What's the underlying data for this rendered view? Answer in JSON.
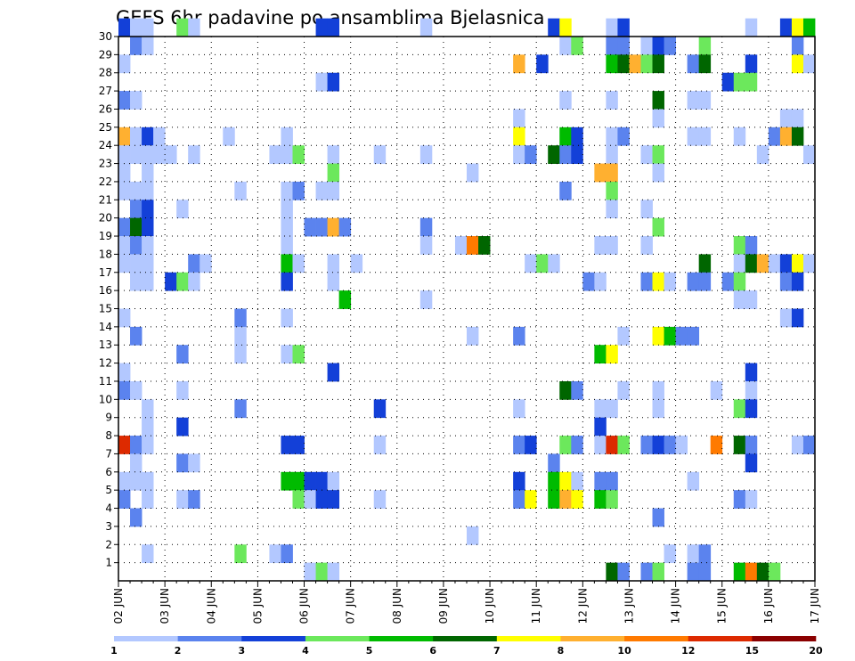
{
  "chart_data": {
    "type": "heatmap",
    "title": "GEFS 6hr padavine po ansamblima Bjelasnica",
    "x_tick_labels": [
      "02 JUN",
      "03 JUN",
      "04 JUN",
      "05 JUN",
      "06 JUN",
      "07 JUN",
      "08 JUN",
      "09 JUN",
      "10 JUN",
      "11 JUN",
      "12 JUN",
      "13 JUN",
      "14 JUN",
      "15 JUN",
      "16 JUN",
      "17 JUN"
    ],
    "y_tick_labels": [
      "1",
      "2",
      "3",
      "4",
      "5",
      "6",
      "7",
      "8",
      "9",
      "10",
      "11",
      "12",
      "13",
      "14",
      "15",
      "16",
      "17",
      "18",
      "19",
      "20",
      "21",
      "22",
      "23",
      "24",
      "25",
      "26",
      "27",
      "28",
      "29",
      "30"
    ],
    "x_range_steps": [
      0,
      60
    ],
    "steps_per_day": 4,
    "members_range": [
      0,
      30
    ],
    "grid": true,
    "colorbar": {
      "position": "bottom",
      "labels": [
        "1",
        "2",
        "3",
        "4",
        "5",
        "6",
        "7",
        "8",
        "10",
        "12",
        "15",
        "20"
      ],
      "colors": [
        "#b3c8ff",
        "#5b83ee",
        "#1340d8",
        "#6ce85c",
        "#00bb00",
        "#006600",
        "#ffff00",
        "#ffb030",
        "#ff7a00",
        "#dd2a00",
        "#8b0000"
      ]
    },
    "cells_legend": "[member, step, color_class]; color_class 1..11 indexes colorbar.colors",
    "cells": [
      [
        30,
        0,
        3
      ],
      [
        30,
        1,
        1
      ],
      [
        30,
        2,
        1
      ],
      [
        30,
        5,
        4
      ],
      [
        30,
        6,
        1
      ],
      [
        30,
        17,
        3
      ],
      [
        30,
        18,
        3
      ],
      [
        30,
        26,
        1
      ],
      [
        30,
        37,
        3
      ],
      [
        30,
        38,
        7
      ],
      [
        30,
        42,
        1
      ],
      [
        30,
        43,
        3
      ],
      [
        30,
        54,
        1
      ],
      [
        30,
        57,
        3
      ],
      [
        30,
        58,
        7
      ],
      [
        30,
        59,
        5
      ],
      [
        29,
        1,
        2
      ],
      [
        29,
        2,
        1
      ],
      [
        29,
        38,
        1
      ],
      [
        29,
        39,
        4
      ],
      [
        29,
        42,
        2
      ],
      [
        29,
        43,
        2
      ],
      [
        29,
        45,
        1
      ],
      [
        29,
        46,
        3
      ],
      [
        29,
        47,
        2
      ],
      [
        29,
        50,
        4
      ],
      [
        29,
        58,
        2
      ],
      [
        28,
        0,
        1
      ],
      [
        28,
        34,
        8
      ],
      [
        28,
        36,
        3
      ],
      [
        28,
        42,
        5
      ],
      [
        28,
        43,
        6
      ],
      [
        28,
        44,
        8
      ],
      [
        28,
        45,
        4
      ],
      [
        28,
        46,
        6
      ],
      [
        28,
        49,
        2
      ],
      [
        28,
        50,
        6
      ],
      [
        28,
        54,
        3
      ],
      [
        28,
        58,
        7
      ],
      [
        28,
        59,
        1
      ],
      [
        27,
        17,
        1
      ],
      [
        27,
        18,
        3
      ],
      [
        27,
        52,
        3
      ],
      [
        27,
        53,
        4
      ],
      [
        27,
        54,
        4
      ],
      [
        26,
        0,
        2
      ],
      [
        26,
        1,
        1
      ],
      [
        26,
        38,
        1
      ],
      [
        26,
        42,
        1
      ],
      [
        26,
        46,
        6
      ],
      [
        26,
        49,
        1
      ],
      [
        26,
        50,
        1
      ],
      [
        25,
        34,
        1
      ],
      [
        25,
        46,
        1
      ],
      [
        25,
        57,
        1
      ],
      [
        25,
        58,
        1
      ],
      [
        24,
        0,
        8
      ],
      [
        24,
        1,
        1
      ],
      [
        24,
        2,
        3
      ],
      [
        24,
        3,
        1
      ],
      [
        24,
        9,
        1
      ],
      [
        24,
        14,
        1
      ],
      [
        24,
        34,
        7
      ],
      [
        24,
        38,
        5
      ],
      [
        24,
        39,
        3
      ],
      [
        24,
        42,
        1
      ],
      [
        24,
        43,
        2
      ],
      [
        24,
        49,
        1
      ],
      [
        24,
        50,
        1
      ],
      [
        24,
        53,
        1
      ],
      [
        24,
        56,
        2
      ],
      [
        24,
        57,
        8
      ],
      [
        24,
        58,
        6
      ],
      [
        23,
        0,
        1
      ],
      [
        23,
        1,
        1
      ],
      [
        23,
        2,
        1
      ],
      [
        23,
        3,
        1
      ],
      [
        23,
        4,
        1
      ],
      [
        23,
        6,
        1
      ],
      [
        23,
        13,
        1
      ],
      [
        23,
        14,
        1
      ],
      [
        23,
        15,
        4
      ],
      [
        23,
        18,
        1
      ],
      [
        23,
        22,
        1
      ],
      [
        23,
        26,
        1
      ],
      [
        23,
        34,
        1
      ],
      [
        23,
        35,
        2
      ],
      [
        23,
        37,
        6
      ],
      [
        23,
        38,
        2
      ],
      [
        23,
        39,
        3
      ],
      [
        23,
        42,
        1
      ],
      [
        23,
        45,
        1
      ],
      [
        23,
        46,
        4
      ],
      [
        23,
        55,
        1
      ],
      [
        23,
        59,
        1
      ],
      [
        22,
        0,
        1
      ],
      [
        22,
        2,
        1
      ],
      [
        22,
        18,
        4
      ],
      [
        22,
        30,
        1
      ],
      [
        22,
        41,
        8
      ],
      [
        22,
        42,
        8
      ],
      [
        22,
        46,
        1
      ],
      [
        21,
        0,
        1
      ],
      [
        21,
        1,
        1
      ],
      [
        21,
        2,
        1
      ],
      [
        21,
        10,
        1
      ],
      [
        21,
        14,
        1
      ],
      [
        21,
        15,
        2
      ],
      [
        21,
        17,
        1
      ],
      [
        21,
        18,
        1
      ],
      [
        21,
        38,
        2
      ],
      [
        21,
        42,
        4
      ],
      [
        20,
        1,
        2
      ],
      [
        20,
        2,
        3
      ],
      [
        20,
        5,
        1
      ],
      [
        20,
        14,
        1
      ],
      [
        20,
        42,
        1
      ],
      [
        20,
        45,
        1
      ],
      [
        19,
        0,
        2
      ],
      [
        19,
        1,
        6
      ],
      [
        19,
        2,
        3
      ],
      [
        19,
        14,
        1
      ],
      [
        19,
        16,
        2
      ],
      [
        19,
        17,
        2
      ],
      [
        19,
        18,
        8
      ],
      [
        19,
        19,
        2
      ],
      [
        19,
        26,
        2
      ],
      [
        19,
        46,
        4
      ],
      [
        18,
        0,
        1
      ],
      [
        18,
        1,
        2
      ],
      [
        18,
        2,
        1
      ],
      [
        18,
        14,
        1
      ],
      [
        18,
        26,
        1
      ],
      [
        18,
        29,
        1
      ],
      [
        18,
        30,
        9
      ],
      [
        18,
        31,
        6
      ],
      [
        18,
        41,
        1
      ],
      [
        18,
        42,
        1
      ],
      [
        18,
        45,
        1
      ],
      [
        18,
        53,
        4
      ],
      [
        18,
        54,
        2
      ],
      [
        17,
        0,
        1
      ],
      [
        17,
        1,
        1
      ],
      [
        17,
        2,
        1
      ],
      [
        17,
        6,
        2
      ],
      [
        17,
        7,
        1
      ],
      [
        17,
        14,
        5
      ],
      [
        17,
        15,
        1
      ],
      [
        17,
        18,
        1
      ],
      [
        17,
        20,
        1
      ],
      [
        17,
        35,
        1
      ],
      [
        17,
        36,
        4
      ],
      [
        17,
        37,
        1
      ],
      [
        17,
        50,
        6
      ],
      [
        17,
        53,
        1
      ],
      [
        17,
        54,
        6
      ],
      [
        17,
        55,
        8
      ],
      [
        17,
        56,
        1
      ],
      [
        17,
        57,
        3
      ],
      [
        17,
        58,
        7
      ],
      [
        17,
        59,
        1
      ],
      [
        16,
        1,
        1
      ],
      [
        16,
        2,
        1
      ],
      [
        16,
        4,
        3
      ],
      [
        16,
        5,
        4
      ],
      [
        16,
        6,
        1
      ],
      [
        16,
        14,
        3
      ],
      [
        16,
        18,
        1
      ],
      [
        16,
        40,
        2
      ],
      [
        16,
        41,
        1
      ],
      [
        16,
        45,
        2
      ],
      [
        16,
        46,
        7
      ],
      [
        16,
        47,
        1
      ],
      [
        16,
        49,
        2
      ],
      [
        16,
        50,
        2
      ],
      [
        16,
        52,
        2
      ],
      [
        16,
        53,
        4
      ],
      [
        16,
        57,
        2
      ],
      [
        16,
        58,
        3
      ],
      [
        15,
        19,
        5
      ],
      [
        15,
        26,
        1
      ],
      [
        15,
        53,
        1
      ],
      [
        15,
        54,
        1
      ],
      [
        14,
        0,
        1
      ],
      [
        14,
        10,
        2
      ],
      [
        14,
        14,
        1
      ],
      [
        14,
        57,
        1
      ],
      [
        14,
        58,
        3
      ],
      [
        13,
        1,
        2
      ],
      [
        13,
        10,
        1
      ],
      [
        13,
        30,
        1
      ],
      [
        13,
        34,
        2
      ],
      [
        13,
        43,
        1
      ],
      [
        13,
        46,
        7
      ],
      [
        13,
        47,
        5
      ],
      [
        13,
        48,
        2
      ],
      [
        13,
        49,
        2
      ],
      [
        12,
        5,
        2
      ],
      [
        12,
        10,
        1
      ],
      [
        12,
        14,
        1
      ],
      [
        12,
        15,
        4
      ],
      [
        12,
        41,
        5
      ],
      [
        12,
        42,
        7
      ],
      [
        11,
        0,
        1
      ],
      [
        11,
        18,
        3
      ],
      [
        11,
        54,
        3
      ],
      [
        10,
        0,
        2
      ],
      [
        10,
        1,
        1
      ],
      [
        10,
        5,
        1
      ],
      [
        10,
        38,
        6
      ],
      [
        10,
        39,
        2
      ],
      [
        10,
        43,
        1
      ],
      [
        10,
        46,
        1
      ],
      [
        10,
        51,
        1
      ],
      [
        10,
        54,
        1
      ],
      [
        9,
        2,
        1
      ],
      [
        9,
        10,
        2
      ],
      [
        9,
        22,
        3
      ],
      [
        9,
        34,
        1
      ],
      [
        9,
        41,
        1
      ],
      [
        9,
        42,
        1
      ],
      [
        9,
        46,
        1
      ],
      [
        9,
        53,
        4
      ],
      [
        9,
        54,
        3
      ],
      [
        8,
        2,
        1
      ],
      [
        8,
        5,
        3
      ],
      [
        8,
        41,
        3
      ],
      [
        7,
        0,
        10
      ],
      [
        7,
        1,
        2
      ],
      [
        7,
        2,
        1
      ],
      [
        7,
        14,
        3
      ],
      [
        7,
        15,
        3
      ],
      [
        7,
        22,
        1
      ],
      [
        7,
        34,
        2
      ],
      [
        7,
        35,
        3
      ],
      [
        7,
        38,
        4
      ],
      [
        7,
        39,
        2
      ],
      [
        7,
        41,
        1
      ],
      [
        7,
        42,
        10
      ],
      [
        7,
        43,
        4
      ],
      [
        7,
        45,
        2
      ],
      [
        7,
        46,
        3
      ],
      [
        7,
        47,
        2
      ],
      [
        7,
        48,
        1
      ],
      [
        7,
        51,
        9
      ],
      [
        7,
        53,
        6
      ],
      [
        7,
        54,
        2
      ],
      [
        7,
        58,
        1
      ],
      [
        7,
        59,
        2
      ],
      [
        6,
        1,
        1
      ],
      [
        6,
        5,
        2
      ],
      [
        6,
        6,
        1
      ],
      [
        6,
        37,
        2
      ],
      [
        6,
        54,
        3
      ],
      [
        5,
        0,
        1
      ],
      [
        5,
        1,
        1
      ],
      [
        5,
        2,
        1
      ],
      [
        5,
        14,
        5
      ],
      [
        5,
        15,
        5
      ],
      [
        5,
        16,
        3
      ],
      [
        5,
        17,
        3
      ],
      [
        5,
        18,
        1
      ],
      [
        5,
        34,
        3
      ],
      [
        5,
        37,
        5
      ],
      [
        5,
        38,
        7
      ],
      [
        5,
        39,
        1
      ],
      [
        5,
        41,
        2
      ],
      [
        5,
        42,
        2
      ],
      [
        5,
        49,
        1
      ],
      [
        4,
        0,
        2
      ],
      [
        4,
        2,
        1
      ],
      [
        4,
        5,
        1
      ],
      [
        4,
        6,
        2
      ],
      [
        4,
        15,
        4
      ],
      [
        4,
        16,
        1
      ],
      [
        4,
        17,
        3
      ],
      [
        4,
        18,
        3
      ],
      [
        4,
        22,
        1
      ],
      [
        4,
        34,
        2
      ],
      [
        4,
        35,
        7
      ],
      [
        4,
        37,
        5
      ],
      [
        4,
        38,
        8
      ],
      [
        4,
        39,
        7
      ],
      [
        4,
        41,
        5
      ],
      [
        4,
        42,
        4
      ],
      [
        4,
        53,
        2
      ],
      [
        4,
        54,
        1
      ],
      [
        3,
        1,
        2
      ],
      [
        3,
        46,
        2
      ],
      [
        2,
        30,
        1
      ],
      [
        1,
        2,
        1
      ],
      [
        1,
        10,
        4
      ],
      [
        1,
        13,
        1
      ],
      [
        1,
        14,
        2
      ],
      [
        1,
        47,
        1
      ],
      [
        1,
        49,
        1
      ],
      [
        1,
        50,
        2
      ],
      [
        0,
        16,
        1
      ],
      [
        0,
        17,
        4
      ],
      [
        0,
        18,
        1
      ],
      [
        0,
        42,
        6
      ],
      [
        0,
        43,
        2
      ],
      [
        0,
        45,
        2
      ],
      [
        0,
        46,
        4
      ],
      [
        0,
        49,
        2
      ],
      [
        0,
        50,
        2
      ],
      [
        0,
        53,
        5
      ],
      [
        0,
        54,
        9
      ],
      [
        0,
        55,
        6
      ],
      [
        0,
        56,
        4
      ]
    ]
  }
}
